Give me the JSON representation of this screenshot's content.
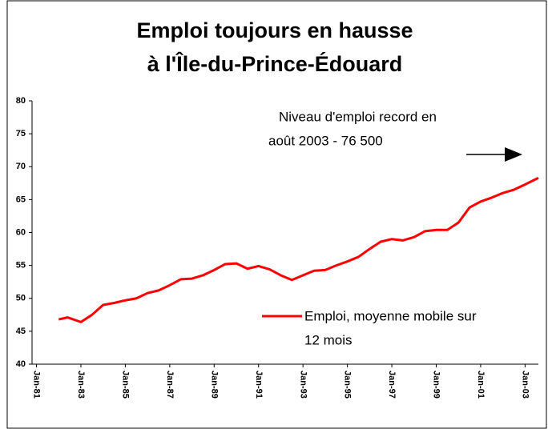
{
  "chart_data": {
    "type": "line",
    "title": [
      "Emploi toujours en hausse",
      "à l'Île-du-Prince-Édouard"
    ],
    "annotation": [
      "Niveau d'emploi record en",
      "août 2003 - 76 500"
    ],
    "x": [
      1982.0,
      1982.4,
      1983.0,
      1983.5,
      1984.0,
      1984.5,
      1985.0,
      1985.5,
      1986.0,
      1986.5,
      1987.0,
      1987.5,
      1988.0,
      1988.5,
      1989.0,
      1989.5,
      1990.0,
      1990.5,
      1991.0,
      1991.5,
      1992.0,
      1992.5,
      1993.0,
      1993.5,
      1994.0,
      1994.5,
      1995.0,
      1995.5,
      1996.0,
      1996.5,
      1997.0,
      1997.5,
      1998.0,
      1998.5,
      1999.0,
      1999.5,
      2000.0,
      2000.5,
      2001.0,
      2001.5,
      2002.0,
      2002.5,
      2003.0,
      2003.6
    ],
    "series": [
      {
        "name": [
          "Emploi, moyenne mobile sur",
          "12 mois"
        ],
        "color": "#ff0000",
        "values": [
          46.8,
          47.1,
          46.4,
          47.5,
          49.0,
          49.3,
          49.7,
          50.0,
          50.8,
          51.2,
          52.0,
          52.9,
          53.0,
          53.5,
          54.3,
          55.2,
          55.3,
          54.5,
          54.9,
          54.4,
          53.5,
          52.8,
          53.5,
          54.2,
          54.3,
          55.0,
          55.6,
          56.3,
          57.5,
          58.6,
          59.0,
          58.8,
          59.3,
          60.2,
          60.4,
          60.4,
          61.5,
          63.8,
          64.7,
          65.3,
          66.0,
          66.5,
          67.3,
          68.3
        ]
      }
    ],
    "xlim": [
      1980.8,
      2003.6
    ],
    "xticks": [
      {
        "value": 1981,
        "label": "Jan-81"
      },
      {
        "value": 1983,
        "label": "Jan-83"
      },
      {
        "value": 1985,
        "label": "Jan-85"
      },
      {
        "value": 1987,
        "label": "Jan-87"
      },
      {
        "value": 1989,
        "label": "Jan-89"
      },
      {
        "value": 1991,
        "label": "Jan-91"
      },
      {
        "value": 1993,
        "label": "Jan-93"
      },
      {
        "value": 1995,
        "label": "Jan-95"
      },
      {
        "value": 1997,
        "label": "Jan-97"
      },
      {
        "value": 1999,
        "label": "Jan-99"
      },
      {
        "value": 2001,
        "label": "Jan-01"
      },
      {
        "value": 2003,
        "label": "Jan-03"
      }
    ],
    "ylim": [
      40,
      80
    ],
    "yticks": [
      40,
      45,
      50,
      55,
      60,
      65,
      70,
      75,
      80
    ]
  }
}
